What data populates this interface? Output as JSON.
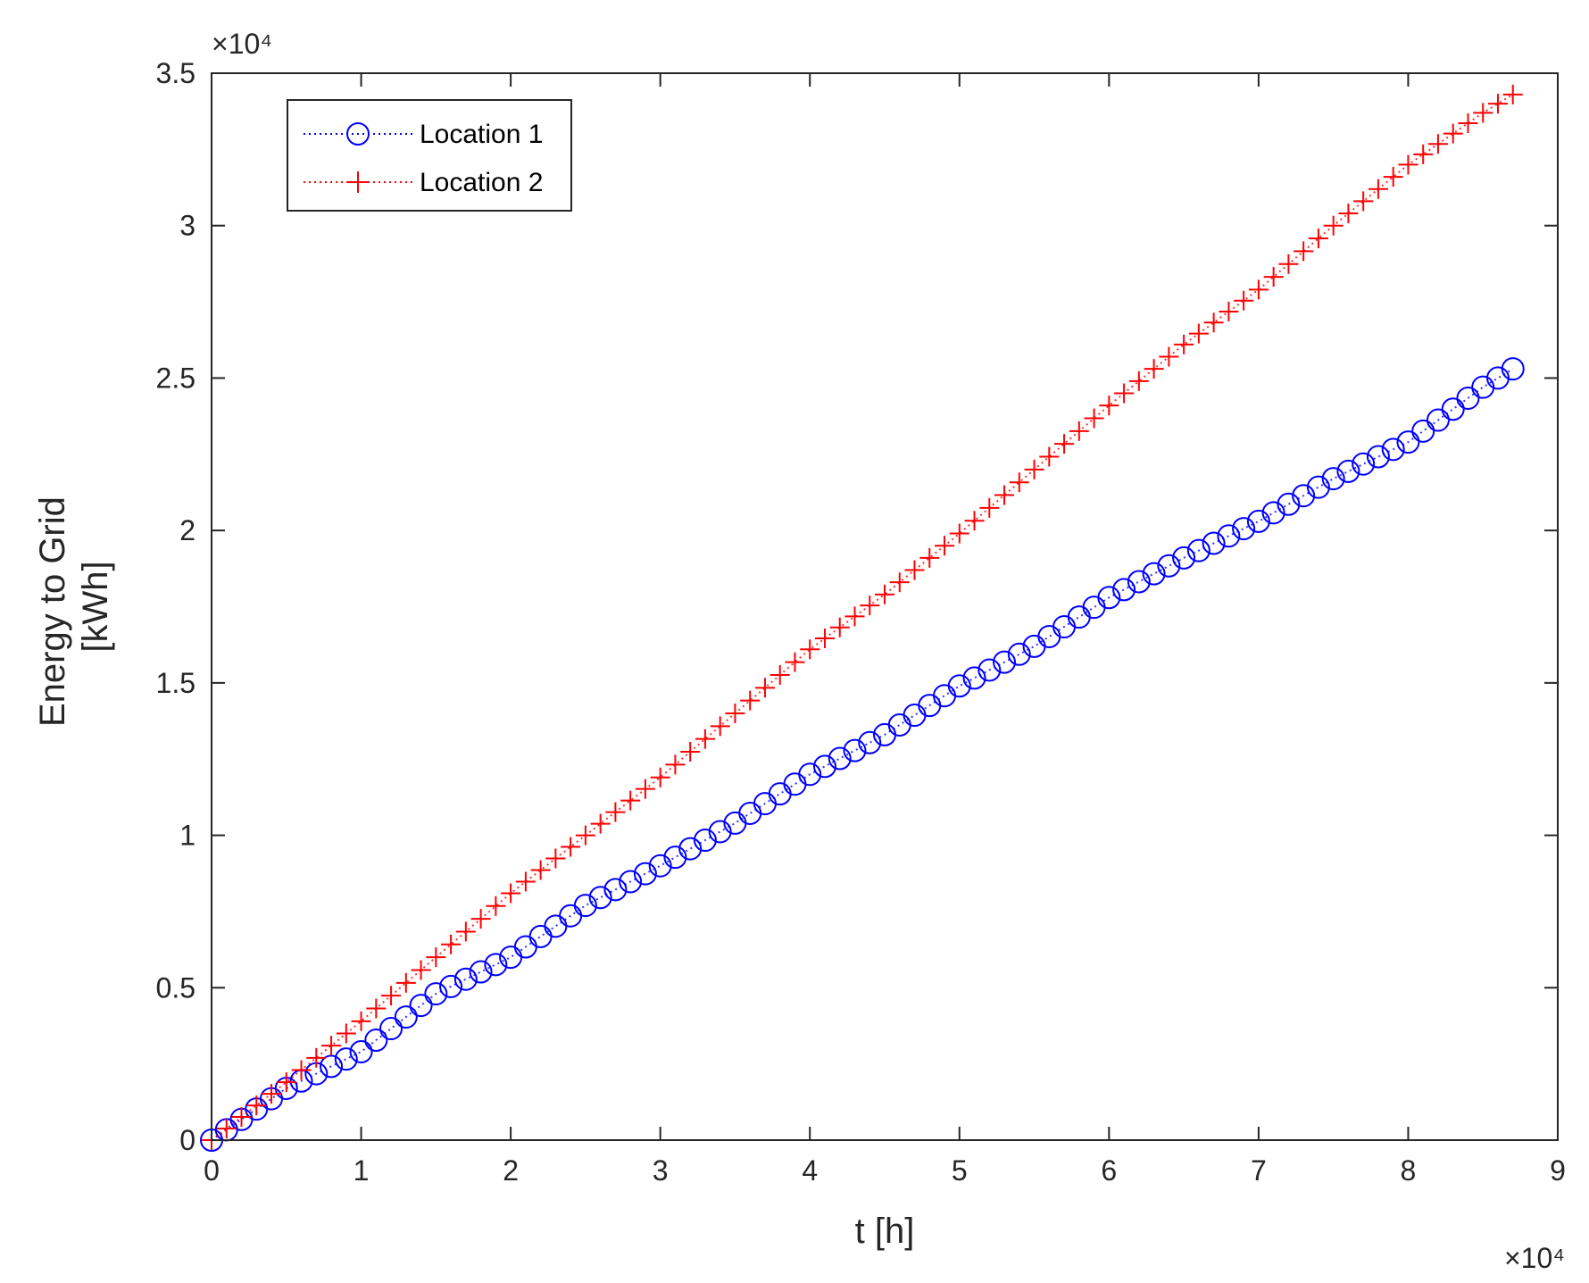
{
  "chart_data": {
    "type": "line",
    "xlabel": "t [h]",
    "ylabel": [
      "Energy to Grid",
      "[kWh]"
    ],
    "xlim": [
      0,
      90000
    ],
    "ylim": [
      0,
      35000
    ],
    "x_ticks": [
      0,
      10000,
      20000,
      30000,
      40000,
      50000,
      60000,
      70000,
      80000,
      90000
    ],
    "x_tick_labels": [
      "0",
      "1",
      "2",
      "3",
      "4",
      "5",
      "6",
      "7",
      "8",
      "9"
    ],
    "y_ticks": [
      0,
      5000,
      10000,
      15000,
      20000,
      25000,
      30000,
      35000
    ],
    "y_tick_labels": [
      "0",
      "0.5",
      "1",
      "1.5",
      "2",
      "2.5",
      "3",
      "3.5"
    ],
    "x_multiplier": "×10⁴",
    "y_multiplier": "×10⁴",
    "grid": false,
    "legend_position": "top-left",
    "series": [
      {
        "name": "Location 1",
        "color": "#0000ff",
        "marker": "circle",
        "line_style": "dotted",
        "x": [
          0,
          5000,
          10000,
          15000,
          20000,
          25000,
          30000,
          35000,
          40000,
          45000,
          50000,
          55000,
          60000,
          65000,
          70000,
          75000,
          80000,
          85000,
          87000
        ],
        "y": [
          0,
          1700,
          2900,
          4800,
          6000,
          7700,
          9000,
          10400,
          12000,
          13300,
          14900,
          16200,
          17800,
          19100,
          20300,
          21700,
          22900,
          24700,
          25300
        ]
      },
      {
        "name": "Location 2",
        "color": "#ff0000",
        "marker": "plus",
        "line_style": "dotted",
        "x": [
          0,
          5000,
          10000,
          15000,
          20000,
          25000,
          30000,
          35000,
          40000,
          45000,
          50000,
          55000,
          60000,
          65000,
          70000,
          75000,
          80000,
          85000,
          87000
        ],
        "y": [
          0,
          1900,
          3900,
          6000,
          8100,
          10000,
          11900,
          14000,
          16100,
          17900,
          19900,
          22000,
          24100,
          26100,
          27900,
          30000,
          32000,
          33700,
          34300
        ]
      }
    ]
  }
}
